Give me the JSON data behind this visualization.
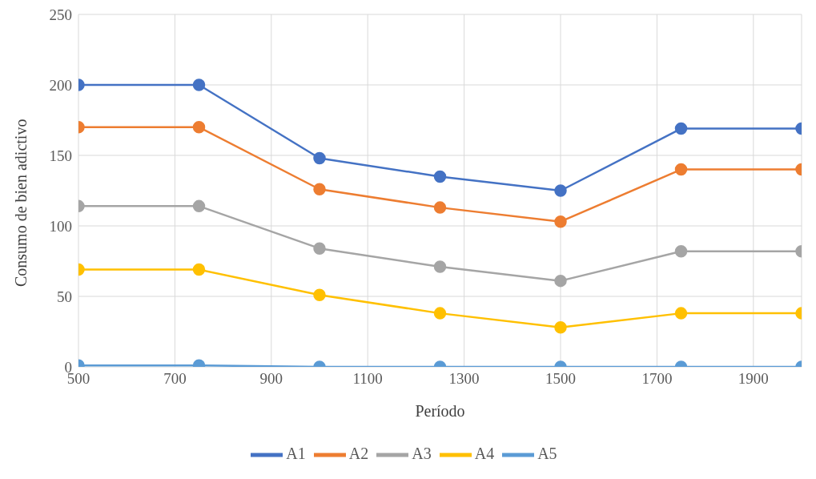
{
  "chart_data": {
    "type": "line",
    "xlabel": "Período",
    "ylabel": "Consumo de bien adictivo",
    "x": [
      500,
      750,
      1000,
      1250,
      1500,
      1750,
      2000
    ],
    "series": [
      {
        "name": "A1",
        "color": "#4472c4",
        "values": [
          200,
          200,
          148,
          135,
          125,
          169,
          169
        ]
      },
      {
        "name": "A2",
        "color": "#ed7d31",
        "values": [
          170,
          170,
          126,
          113,
          103,
          140,
          140
        ]
      },
      {
        "name": "A3",
        "color": "#a5a5a5",
        "values": [
          114,
          114,
          84,
          71,
          61,
          82,
          82
        ]
      },
      {
        "name": "A4",
        "color": "#ffc000",
        "values": [
          69,
          69,
          51,
          38,
          28,
          38,
          38
        ]
      },
      {
        "name": "A5",
        "color": "#5b9bd5",
        "values": [
          1,
          1,
          0,
          0,
          0,
          0,
          0
        ]
      }
    ],
    "xlim": [
      500,
      2000
    ],
    "xticks": [
      500,
      700,
      900,
      1100,
      1300,
      1500,
      1700,
      1900
    ],
    "ylim": [
      0,
      250
    ],
    "yticks": [
      0,
      50,
      100,
      150,
      200,
      250
    ],
    "grid": true,
    "legend": "bottom",
    "marker": "circle",
    "line_style": "solid"
  }
}
